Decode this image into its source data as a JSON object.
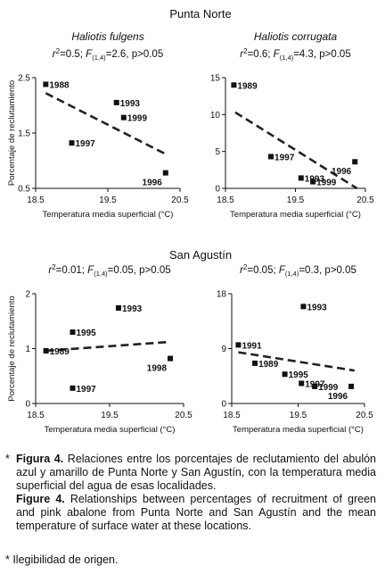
{
  "sections": {
    "punta_norte": "Punta Norte",
    "san_agustin": "San Agustín"
  },
  "chart_data": [
    {
      "type": "scatter",
      "title": "Haliotis fulgens",
      "subtitle": "r²=0.5; F(1,4)=2.6, p>0.05",
      "xlabel": "Temperatura media superficial (°C)",
      "ylabel": "Porcentaje de reclutamiento",
      "xlim": [
        18.5,
        20.5
      ],
      "ylim": [
        0.5,
        2.5
      ],
      "xticks": [
        "18.5",
        "19.5",
        "20.5"
      ],
      "yticks": [
        "0.5",
        "1.5",
        "2.5"
      ],
      "points": [
        {
          "label": "1988",
          "x": 18.64,
          "y": 2.38
        },
        {
          "label": "1997",
          "x": 19.0,
          "y": 1.32
        },
        {
          "label": "1993",
          "x": 19.62,
          "y": 2.05
        },
        {
          "label": "1999",
          "x": 19.72,
          "y": 1.78
        },
        {
          "label": "1996",
          "x": 20.3,
          "y": 0.78
        }
      ],
      "trend": {
        "x": [
          18.64,
          20.3
        ],
        "y": [
          2.22,
          1.12
        ]
      }
    },
    {
      "type": "scatter",
      "title": "Haliotis corrugata",
      "subtitle": "r²=0.6; F(1,4)=4.3, p>0.05",
      "xlabel": "Temperatura media superficial (°C)",
      "ylabel": "",
      "xlim": [
        18.5,
        20.5
      ],
      "ylim": [
        0,
        15
      ],
      "xticks": [
        "18.5",
        "19.5",
        "20.5"
      ],
      "yticks": [
        "0",
        "5",
        "10",
        "15"
      ],
      "points": [
        {
          "label": "1989",
          "x": 18.62,
          "y": 14.0
        },
        {
          "label": "1997",
          "x": 19.15,
          "y": 4.3
        },
        {
          "label": "1993",
          "x": 19.58,
          "y": 1.4
        },
        {
          "label": "1999",
          "x": 19.75,
          "y": 0.9
        },
        {
          "label": "1996",
          "x": 20.35,
          "y": 3.6
        }
      ],
      "trend": {
        "x": [
          18.64,
          20.38
        ],
        "y": [
          10.3,
          0
        ]
      }
    },
    {
      "type": "scatter",
      "title": "",
      "subtitle": "r²=0.01; F(1,4)=0.05, p>0.05",
      "xlabel": "Temperatura media superficial (°C)",
      "ylabel": "Porcentaje de reclutamiento",
      "xlim": [
        18.5,
        20.5
      ],
      "ylim": [
        0,
        2
      ],
      "xticks": [
        "18.5",
        "19.5",
        "20.5"
      ],
      "yticks": [
        "0",
        "1",
        "2"
      ],
      "points": [
        {
          "label": "1989",
          "x": 18.64,
          "y": 0.96
        },
        {
          "label": "1995",
          "x": 19.0,
          "y": 1.3
        },
        {
          "label": "1997",
          "x": 19.0,
          "y": 0.28
        },
        {
          "label": "1993",
          "x": 19.62,
          "y": 1.74
        },
        {
          "label": "1998",
          "x": 20.32,
          "y": 0.82
        }
      ],
      "trend": {
        "x": [
          18.64,
          20.3
        ],
        "y": [
          0.96,
          1.12
        ]
      }
    },
    {
      "type": "scatter",
      "title": "",
      "subtitle": "r²=0.05; F(1,4)=0.3, p>0.05",
      "xlabel": "Temperatura media superficial (°C)",
      "ylabel": "",
      "xlim": [
        18.5,
        20.5
      ],
      "ylim": [
        0,
        18
      ],
      "xticks": [
        "18.5",
        "19.5",
        "20.5"
      ],
      "yticks": [
        "0",
        "9",
        "18"
      ],
      "points": [
        {
          "label": "1991",
          "x": 18.6,
          "y": 9.6
        },
        {
          "label": "1989",
          "x": 18.85,
          "y": 6.6
        },
        {
          "label": "1995",
          "x": 19.3,
          "y": 4.8
        },
        {
          "label": "1997",
          "x": 19.55,
          "y": 3.3
        },
        {
          "label": "1993",
          "x": 19.58,
          "y": 15.9
        },
        {
          "label": "1999",
          "x": 19.75,
          "y": 2.8
        },
        {
          "label": "1996",
          "x": 20.3,
          "y": 2.8
        }
      ],
      "trend": {
        "x": [
          18.6,
          20.35
        ],
        "y": [
          8.4,
          5.4
        ]
      }
    }
  ],
  "caption": {
    "star": "*",
    "es_label": "Figura 4.",
    "es_text": " Relaciones entre los porcentajes de reclutamiento del abulón azul y amarillo de Punta Norte y San Agustín, con la temperatura media superficial del agua de esas localidades.",
    "en_label": "Figure 4.",
    "en_text": " Relationships between percentages of recruitment of green and pink abalone from Punta Norte and San Agustín and the mean temperature of surface water at these locations."
  },
  "footnote": "* Ilegibilidad de origen."
}
